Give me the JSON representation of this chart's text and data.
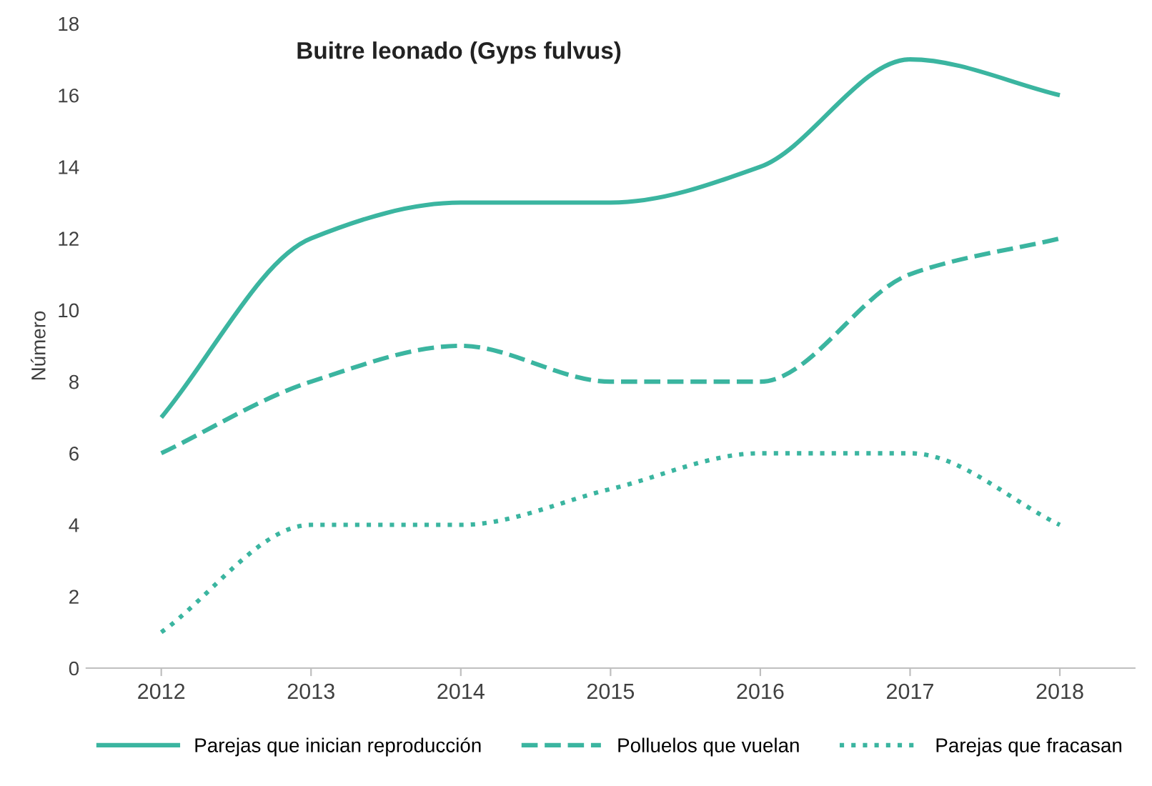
{
  "chart_data": {
    "type": "line",
    "title": "Buitre leonado (Gyps fulvus)",
    "ylabel": "Número",
    "categories": [
      "2012",
      "2013",
      "2014",
      "2015",
      "2016",
      "2017",
      "2018"
    ],
    "series": [
      {
        "name": "Parejas que inician reproducción",
        "color": "#3bb5a0",
        "line_style": "solid",
        "values": [
          7,
          12,
          13,
          13,
          14,
          17,
          16
        ]
      },
      {
        "name": "Polluelos que vuelan",
        "color": "#3bb5a0",
        "line_style": "dashed",
        "values": [
          6,
          8,
          9,
          8,
          8,
          11,
          12
        ]
      },
      {
        "name": "Parejas que fracasan",
        "color": "#3bb5a0",
        "line_style": "dotted",
        "values": [
          1,
          4,
          4,
          5,
          6,
          6,
          4
        ]
      }
    ],
    "ylim": [
      0,
      18
    ],
    "yticks": [
      0,
      2,
      4,
      6,
      8,
      10,
      12,
      14,
      16,
      18
    ],
    "grid": false,
    "legend": "bottom",
    "marker": "none"
  }
}
